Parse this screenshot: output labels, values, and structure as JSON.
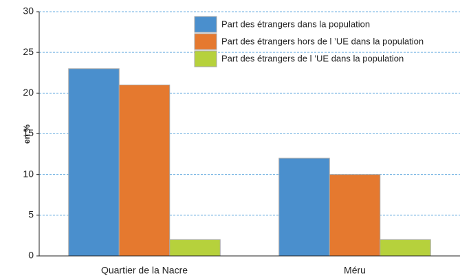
{
  "chart_data": {
    "type": "bar",
    "y_label": "en %",
    "categories": [
      "Quartier de la Nacre",
      "Méru"
    ],
    "series": [
      {
        "name": "Part des étrangers dans la population",
        "color": "#4a8fcd",
        "values": [
          23,
          12
        ]
      },
      {
        "name": "Part des étrangers hors de l ’UE dans la population",
        "color": "#e5792f",
        "values": [
          21,
          10
        ]
      },
      {
        "name": "Part des étrangers de l ’UE dans la population",
        "color": "#b6d13c",
        "values": [
          2,
          2
        ]
      }
    ],
    "ylim": [
      0,
      30
    ],
    "yticks": [
      0,
      5,
      10,
      15,
      20,
      25,
      30
    ],
    "grid": true,
    "legend": "top-right"
  }
}
